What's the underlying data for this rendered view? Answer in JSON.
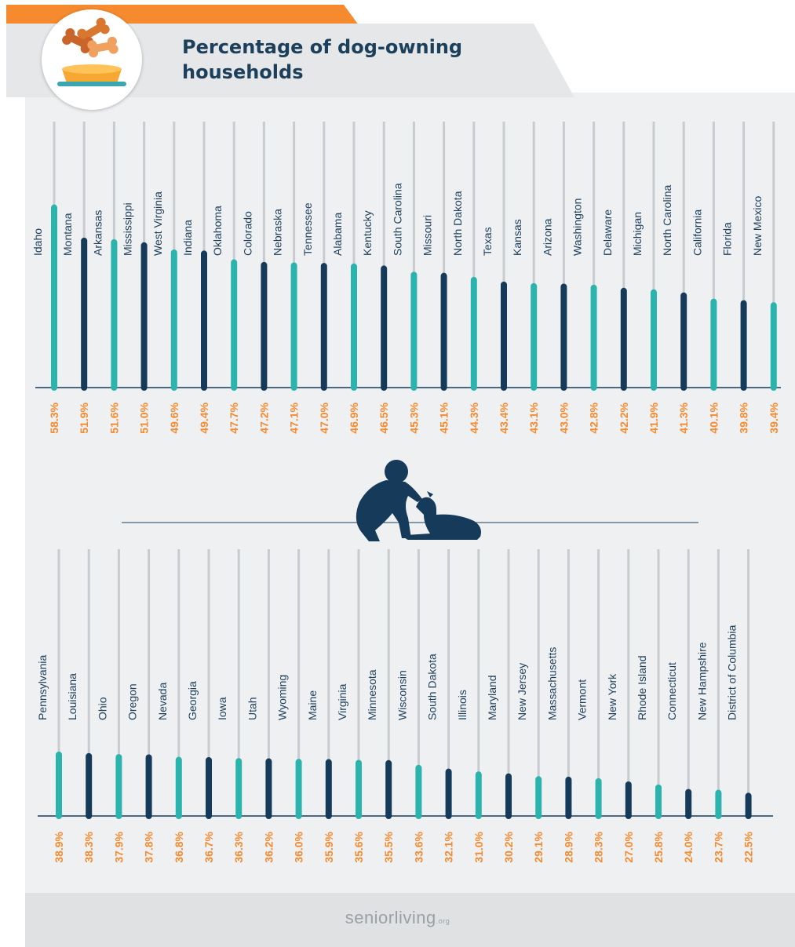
{
  "title": "Percentage of dog-owning households",
  "brand": {
    "name": "seniorliving",
    "tld": ".org"
  },
  "colors": {
    "teal": "#2bb3ad",
    "navy": "#163a59",
    "orange": "#f58a2e",
    "track": "#c8cbcf"
  },
  "chart_data": [
    {
      "type": "bar",
      "categories": [
        "Idaho",
        "Montana",
        "Arkansas",
        "Mississippi",
        "West Virginia",
        "Indiana",
        "Oklahoma",
        "Colorado",
        "Nebraska",
        "Tennessee",
        "Alabama",
        "Kentucky",
        "South Carolina",
        "Missouri",
        "North Dakota",
        "Texas",
        "Kansas",
        "Arizona",
        "Washington",
        "Delaware",
        "Michigan",
        "North Carolina",
        "California",
        "Florida",
        "New Mexico"
      ],
      "values": [
        58.3,
        51.9,
        51.6,
        51.0,
        49.6,
        49.4,
        47.7,
        47.2,
        47.1,
        47.0,
        46.9,
        46.5,
        45.3,
        45.1,
        44.3,
        43.4,
        43.1,
        43.0,
        42.8,
        42.2,
        41.9,
        41.3,
        40.1,
        39.8,
        39.4
      ],
      "value_labels": [
        "58.3%",
        "51.9%",
        "51.6%",
        "51.0%",
        "49.6%",
        "49.4%",
        "47.7%",
        "47.2%",
        "47.1%",
        "47.0%",
        "46.9%",
        "46.5%",
        "45.3%",
        "45.1%",
        "44.3%",
        "43.4%",
        "43.1%",
        "43.0%",
        "42.8%",
        "42.2%",
        "41.9%",
        "41.3%",
        "40.1%",
        "39.8%",
        "39.4%"
      ]
    },
    {
      "type": "bar",
      "categories": [
        "Pennsylvania",
        "Louisiana",
        "Ohio",
        "Oregon",
        "Nevada",
        "Georgia",
        "Iowa",
        "Utah",
        "Wyoming",
        "Maine",
        "Virginia",
        "Minnesota",
        "Wisconsin",
        "South Dakota",
        "Illinois",
        "Maryland",
        "New Jersey",
        "Massachusetts",
        "Vermont",
        "New York",
        "Rhode Island",
        "Connecticut",
        "New Hampshire",
        "District of Columbia"
      ],
      "values": [
        38.9,
        38.3,
        37.9,
        37.8,
        36.8,
        36.7,
        36.3,
        36.2,
        36.0,
        35.9,
        35.6,
        35.5,
        33.6,
        32.1,
        31.0,
        30.2,
        29.1,
        28.9,
        28.3,
        27.0,
        25.8,
        24.0,
        23.7,
        22.5
      ],
      "value_labels": [
        "38.9%",
        "38.3%",
        "37.9%",
        "37.8%",
        "36.8%",
        "36.7%",
        "36.3%",
        "36.2%",
        "36.0%",
        "35.9%",
        "35.6%",
        "35.5%",
        "33.6%",
        "32.1%",
        "31.0%",
        "30.2%",
        "29.1%",
        "28.9%",
        "28.3%",
        "27.0%",
        "25.8%",
        "24.0%",
        "23.7%",
        "22.5%"
      ]
    }
  ]
}
